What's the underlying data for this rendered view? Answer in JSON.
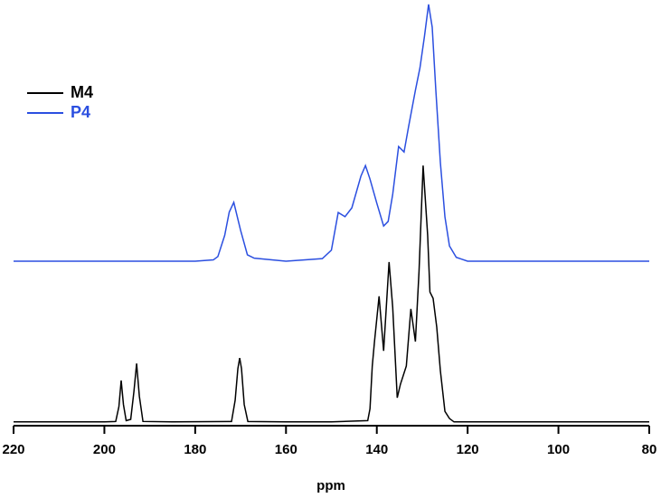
{
  "chart_data": {
    "type": "line",
    "x_label": "ppm",
    "xlim": [
      220,
      80
    ],
    "xticks": [
      220,
      200,
      180,
      160,
      140,
      120,
      100,
      80
    ],
    "ylim": [
      0,
      100
    ],
    "legend": "upper left",
    "series": [
      {
        "name": "M4",
        "color": "#000000",
        "x": [
          220,
          210,
          200,
          197.5,
          196.8,
          196.3,
          195.8,
          195.2,
          194.2,
          193.5,
          192.9,
          192.3,
          191.5,
          185,
          172,
          171.2,
          170.6,
          170.2,
          169.8,
          169.2,
          168.4,
          160,
          150,
          142,
          141.5,
          141,
          140.5,
          139.5,
          138.5,
          137.3,
          136.5,
          135.5,
          134.8,
          133.5,
          132.5,
          131.5,
          130.7,
          129.8,
          128.8,
          128.3,
          127.6,
          126.8,
          126,
          125,
          124,
          123,
          110,
          100,
          90,
          80
        ],
        "values": [
          0.9,
          0.9,
          0.9,
          1.0,
          4.5,
          10.7,
          5.0,
          1.2,
          1.5,
          8.0,
          14.7,
          7.0,
          1.0,
          0.9,
          1.0,
          6.0,
          13.5,
          16.0,
          13.5,
          5.0,
          1.0,
          0.9,
          0.9,
          1.2,
          4.0,
          14.1,
          20.0,
          30.6,
          17.7,
          38.7,
          28.0,
          6.6,
          9.8,
          14.1,
          27.6,
          19.9,
          36.5,
          61.5,
          45.0,
          31.6,
          30.1,
          23.3,
          13.0,
          3.4,
          1.7,
          0.9,
          0.9,
          0.9,
          0.9,
          0.9
        ]
      },
      {
        "name": "P4",
        "color": "#2b4fe0",
        "x": [
          220,
          200,
          180,
          176,
          175,
          173.5,
          172.5,
          171.5,
          170,
          168.5,
          167,
          160,
          152,
          150,
          148.5,
          147,
          145.5,
          143.5,
          142.5,
          141.5,
          140,
          138.5,
          137.5,
          136.5,
          135.2,
          134,
          133,
          131.5,
          130.5,
          129.5,
          128.6,
          127.8,
          127,
          126,
          125,
          124,
          122.5,
          120,
          100,
          80
        ],
        "values": [
          38.9,
          38.9,
          38.9,
          39.2,
          40.0,
          45.0,
          50.5,
          52.8,
          46.2,
          40.4,
          39.6,
          38.9,
          39.5,
          41.5,
          50.4,
          49.4,
          51.5,
          59.0,
          61.5,
          58.3,
          52.6,
          47.2,
          48.3,
          54.7,
          66.0,
          64.7,
          70.7,
          79.3,
          84.6,
          92.1,
          99.6,
          94.2,
          79.3,
          62.2,
          49.4,
          42.5,
          39.8,
          38.9,
          38.9,
          38.9
        ]
      }
    ]
  }
}
